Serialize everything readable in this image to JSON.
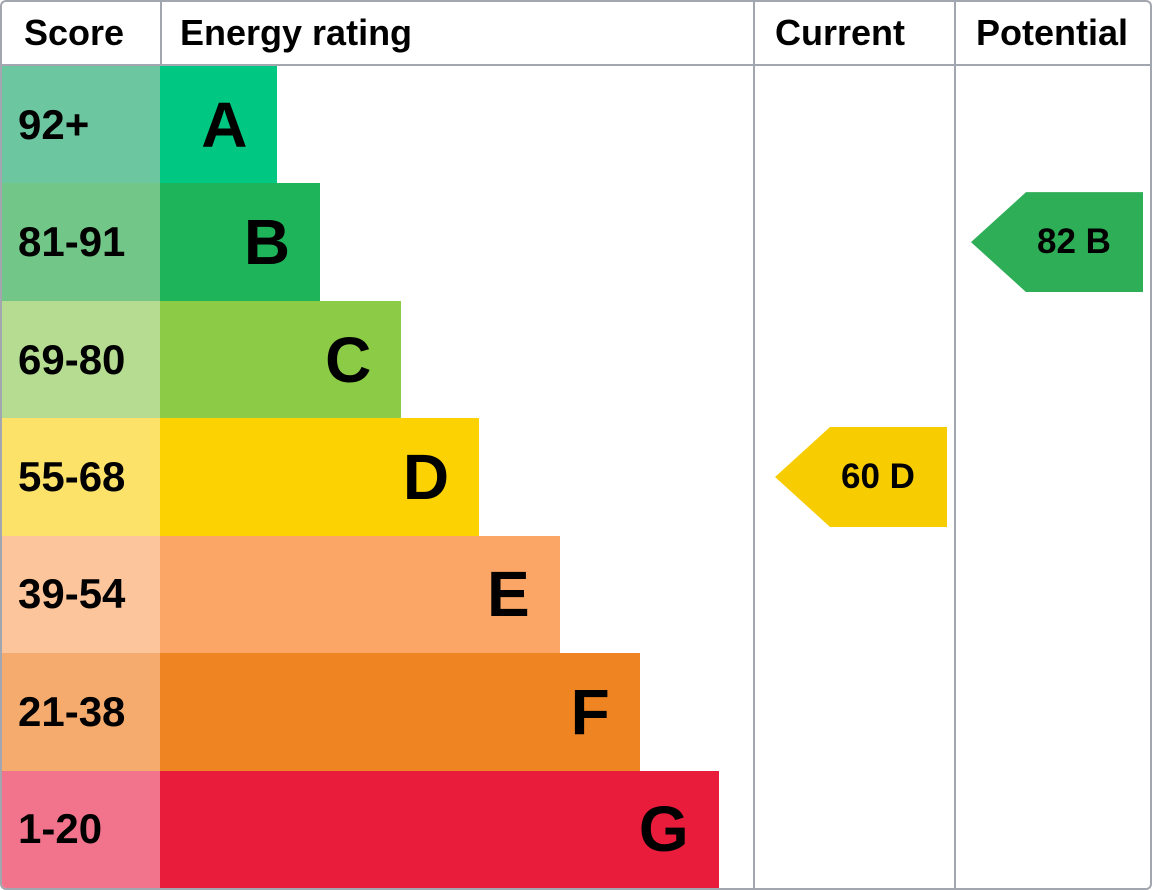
{
  "title": "Energy rating chart",
  "header": {
    "score": "Score",
    "energy_rating": "Energy rating",
    "current": "Current",
    "potential": "Potential"
  },
  "bands": [
    {
      "letter": "A",
      "score": "92+",
      "bar_color": "#00c781",
      "score_color": "#6cc7a0",
      "width_pct": 19.8
    },
    {
      "letter": "B",
      "score": "81-91",
      "bar_color": "#1eb45a",
      "score_color": "#72c687",
      "width_pct": 27.0
    },
    {
      "letter": "C",
      "score": "69-80",
      "bar_color": "#8ccb45",
      "score_color": "#b6dc92",
      "width_pct": 40.7
    },
    {
      "letter": "D",
      "score": "55-68",
      "bar_color": "#fdd203",
      "score_color": "#fde26a",
      "width_pct": 53.8
    },
    {
      "letter": "E",
      "score": "39-54",
      "bar_color": "#fba666",
      "score_color": "#fcc59b",
      "width_pct": 67.4
    },
    {
      "letter": "F",
      "score": "21-38",
      "bar_color": "#ef8423",
      "score_color": "#f4ab6d",
      "width_pct": 80.9
    },
    {
      "letter": "G",
      "score": "1-20",
      "bar_color": "#e91c3c",
      "score_color": "#f1748c",
      "width_pct": 94.2
    }
  ],
  "current": {
    "label": "60 D",
    "score": 60,
    "band": "D",
    "color": "#f7cc00"
  },
  "potential": {
    "label": "82 B",
    "score": 82,
    "band": "B",
    "color": "#2eae57"
  },
  "colors": {
    "border": "#a2a6ae",
    "text": "#000000",
    "background": "#ffffff"
  },
  "chart_data": {
    "type": "bar",
    "title": "Energy rating",
    "orientation": "horizontal",
    "columns": [
      "Score",
      "Energy rating",
      "Current",
      "Potential"
    ],
    "categories": [
      "A",
      "B",
      "C",
      "D",
      "E",
      "F",
      "G"
    ],
    "score_ranges": [
      "92+",
      "81-91",
      "69-80",
      "55-68",
      "39-54",
      "21-38",
      "1-20"
    ],
    "values": [
      19.8,
      27.0,
      40.7,
      53.8,
      67.4,
      80.9,
      94.2
    ],
    "values_meaning": "bar length as percent of Energy rating column width",
    "band_colors": [
      "#00c781",
      "#1eb45a",
      "#8ccb45",
      "#fdd203",
      "#fba666",
      "#ef8423",
      "#e91c3c"
    ],
    "score_cell_colors": [
      "#6cc7a0",
      "#72c687",
      "#b6dc92",
      "#fde26a",
      "#fcc59b",
      "#f4ab6d",
      "#f1748c"
    ],
    "current": {
      "score": 60,
      "band": "D",
      "arrow_color": "#f7cc00",
      "arrow_direction": "left"
    },
    "potential": {
      "score": 82,
      "band": "B",
      "arrow_color": "#2eae57",
      "arrow_direction": "left"
    },
    "grid": false,
    "legend_position": "none"
  }
}
